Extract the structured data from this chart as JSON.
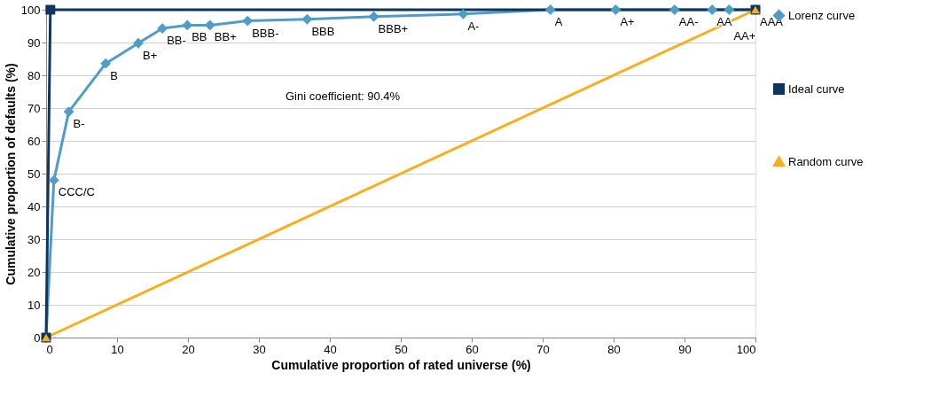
{
  "chart_data": {
    "type": "line",
    "xlabel": "Cumulative proportion of rated universe (%)",
    "ylabel": "Cumulative proportion of defaults (%)",
    "xlim": [
      0,
      100
    ],
    "ylim": [
      0,
      100
    ],
    "xticks": [
      0,
      10,
      20,
      30,
      40,
      50,
      60,
      70,
      80,
      90,
      100
    ],
    "yticks": [
      0,
      10,
      20,
      30,
      40,
      50,
      60,
      70,
      80,
      90,
      100
    ],
    "grid": "y",
    "legend": "right",
    "line_style": "solid",
    "series": [
      {
        "name": "Lorenz curve",
        "color": "#4f9cc8",
        "marker": "diamond",
        "x": [
          0,
          1.1,
          3.2,
          8.4,
          13.0,
          16.4,
          19.9,
          23.1,
          28.4,
          36.8,
          46.2,
          58.8,
          71.1,
          80.3,
          88.6,
          93.9,
          96.3,
          100
        ],
        "values": [
          0,
          48.0,
          68.9,
          83.6,
          89.8,
          94.3,
          95.3,
          95.3,
          96.6,
          97.1,
          97.9,
          98.7,
          100,
          100,
          100,
          100,
          100,
          100
        ]
      },
      {
        "name": "Ideal curve",
        "color": "#0e3461",
        "marker": "square",
        "x": [
          0,
          0.6,
          100
        ],
        "values": [
          0,
          100,
          100
        ]
      },
      {
        "name": "Random curve",
        "color": "#fbad1b",
        "marker": "triangle",
        "x": [
          0,
          100
        ],
        "values": [
          0,
          100
        ]
      }
    ],
    "annotations": [
      {
        "text": "CCC/C",
        "x": 1.1,
        "y": 48.0
      },
      {
        "text": "B-",
        "x": 3.2,
        "y": 68.9
      },
      {
        "text": "B",
        "x": 8.4,
        "y": 83.6
      },
      {
        "text": "B+",
        "x": 13.0,
        "y": 89.8
      },
      {
        "text": "BB-",
        "x": 16.4,
        "y": 94.3
      },
      {
        "text": "BB",
        "x": 19.9,
        "y": 95.3
      },
      {
        "text": "BB+",
        "x": 23.1,
        "y": 95.3
      },
      {
        "text": "BBB-",
        "x": 28.4,
        "y": 96.6
      },
      {
        "text": "BBB",
        "x": 36.8,
        "y": 97.1
      },
      {
        "text": "BBB+",
        "x": 46.2,
        "y": 97.9
      },
      {
        "text": "A-",
        "x": 58.8,
        "y": 98.7
      },
      {
        "text": "A",
        "x": 71.1,
        "y": 100
      },
      {
        "text": "A+",
        "x": 80.3,
        "y": 100
      },
      {
        "text": "AA-",
        "x": 88.6,
        "y": 100
      },
      {
        "text": "AA",
        "x": 93.9,
        "y": 100
      },
      {
        "text": "AA+",
        "x": 96.3,
        "y": 100
      },
      {
        "text": "AAA",
        "x": 100,
        "y": 100
      },
      "Gini coefficient: 90.4%"
    ]
  }
}
